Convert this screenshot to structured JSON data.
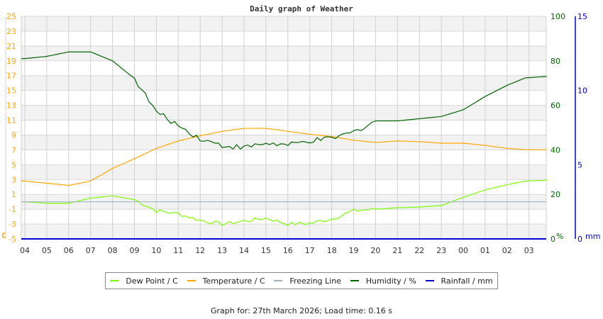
{
  "title": "Daily graph of Weather",
  "footer": "Graph for: 27th March 2026; Load time: 0.16 s",
  "legend": [
    {
      "label": "Dew Point / C",
      "color": "#7cfc00"
    },
    {
      "label": "Temperature / C",
      "color": "#ffa500"
    },
    {
      "label": "Freezing Line",
      "color": "#a0b4c8"
    },
    {
      "label": "Humidity / %",
      "color": "#006400"
    },
    {
      "label": "Rainfall / mm",
      "color": "#0000cd"
    }
  ],
  "axes": {
    "left_unit": "C",
    "left_ticks": [
      "25",
      "23",
      "21",
      "19",
      "17",
      "15",
      "13",
      "11",
      "9",
      "7",
      "5",
      "3",
      "1",
      "-1",
      "-3",
      "-5"
    ],
    "right1_unit": "%",
    "right1_ticks": [
      "100",
      "80",
      "60",
      "40",
      "20",
      "0"
    ],
    "right2_unit": "mm",
    "right2_ticks": [
      "15",
      "10",
      "5",
      "0"
    ],
    "x_ticks": [
      "04",
      "05",
      "06",
      "07",
      "08",
      "09",
      "10",
      "11",
      "12",
      "13",
      "14",
      "15",
      "16",
      "17",
      "18",
      "19",
      "20",
      "21",
      "22",
      "23",
      "00",
      "01",
      "02",
      "03"
    ]
  },
  "chart_data": {
    "type": "line",
    "title": "Daily graph of Weather",
    "xlabel": "",
    "ylabel_left": "C",
    "ylabel_right": "%",
    "ylabel_right2": "mm",
    "ylim_left": [
      -5,
      25
    ],
    "ylim_right": [
      0,
      100
    ],
    "ylim_right2": [
      0,
      15
    ],
    "grid": true,
    "legend_position": "bottom",
    "x": [
      "04",
      "05",
      "06",
      "07",
      "08",
      "09",
      "10",
      "11",
      "12",
      "13",
      "14",
      "15",
      "16",
      "17",
      "18",
      "19",
      "20",
      "21",
      "22",
      "23",
      "00",
      "01",
      "02",
      "03"
    ],
    "series": [
      {
        "name": "Dew Point / C",
        "axis": "left",
        "color": "#7cfc00",
        "values": [
          0.0,
          -0.2,
          -0.2,
          0.5,
          0.8,
          0.3,
          -1.2,
          -1.6,
          -2.5,
          -3.0,
          -2.6,
          -2.2,
          -3.0,
          -2.9,
          -2.3,
          -1.2,
          -1.0,
          -0.8,
          -0.7,
          -0.5,
          0.6,
          1.6,
          2.3,
          2.9
        ]
      },
      {
        "name": "Temperature / C",
        "axis": "left",
        "color": "#ffa500",
        "values": [
          2.8,
          2.5,
          2.2,
          2.8,
          4.5,
          5.8,
          7.2,
          8.2,
          8.9,
          9.5,
          9.9,
          9.9,
          9.5,
          9.1,
          8.8,
          8.3,
          8.0,
          8.2,
          8.1,
          7.9,
          7.9,
          7.6,
          7.2,
          7.0
        ]
      },
      {
        "name": "Freezing Line",
        "axis": "left",
        "color": "#a0b4c8",
        "values": [
          0,
          0,
          0,
          0,
          0,
          0,
          0,
          0,
          0,
          0,
          0,
          0,
          0,
          0,
          0,
          0,
          0,
          0,
          0,
          0,
          0,
          0,
          0,
          0
        ]
      },
      {
        "name": "Humidity / %",
        "axis": "right",
        "color": "#006400",
        "values": [
          81,
          82,
          84,
          84,
          80,
          72,
          57,
          51,
          45,
          42,
          41,
          43,
          42,
          44,
          45,
          48,
          53,
          53,
          54,
          55,
          58,
          64,
          69,
          73
        ]
      },
      {
        "name": "Rainfall / mm",
        "axis": "right2",
        "color": "#0000cd",
        "values": [
          0,
          0,
          0,
          0,
          0,
          0,
          0,
          0,
          0,
          0,
          0,
          0,
          0,
          0,
          0,
          0,
          0,
          0,
          0,
          0,
          0,
          0,
          0,
          0
        ]
      }
    ]
  }
}
